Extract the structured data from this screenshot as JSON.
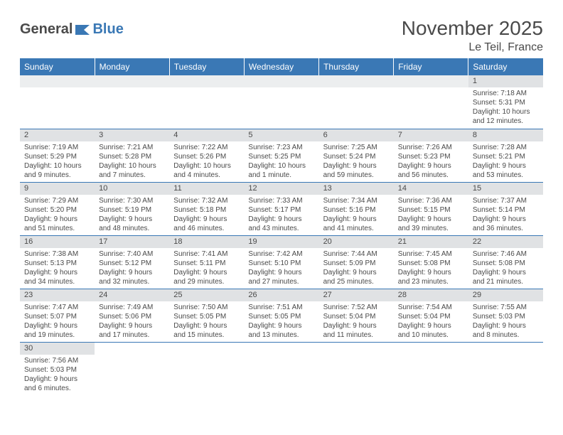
{
  "brand": {
    "part1": "General",
    "part2": "Blue"
  },
  "title": "November 2025",
  "subtitle": "Le Teil, France",
  "colors": {
    "header_bg": "#3a78b5",
    "header_text": "#ffffff",
    "band_bg": "#e0e2e4",
    "band_bg_light": "#eceeef",
    "cell_border": "#3a78b5",
    "text": "#4a4a4a",
    "brand_gray": "#4a4a4a",
    "brand_blue": "#3a78b5"
  },
  "day_headers": [
    "Sunday",
    "Monday",
    "Tuesday",
    "Wednesday",
    "Thursday",
    "Friday",
    "Saturday"
  ],
  "weeks": [
    [
      {
        "blank": true
      },
      {
        "blank": true
      },
      {
        "blank": true
      },
      {
        "blank": true
      },
      {
        "blank": true
      },
      {
        "blank": true
      },
      {
        "n": "1",
        "sunrise": "Sunrise: 7:18 AM",
        "sunset": "Sunset: 5:31 PM",
        "day1": "Daylight: 10 hours",
        "day2": "and 12 minutes."
      }
    ],
    [
      {
        "n": "2",
        "sunrise": "Sunrise: 7:19 AM",
        "sunset": "Sunset: 5:29 PM",
        "day1": "Daylight: 10 hours",
        "day2": "and 9 minutes."
      },
      {
        "n": "3",
        "sunrise": "Sunrise: 7:21 AM",
        "sunset": "Sunset: 5:28 PM",
        "day1": "Daylight: 10 hours",
        "day2": "and 7 minutes."
      },
      {
        "n": "4",
        "sunrise": "Sunrise: 7:22 AM",
        "sunset": "Sunset: 5:26 PM",
        "day1": "Daylight: 10 hours",
        "day2": "and 4 minutes."
      },
      {
        "n": "5",
        "sunrise": "Sunrise: 7:23 AM",
        "sunset": "Sunset: 5:25 PM",
        "day1": "Daylight: 10 hours",
        "day2": "and 1 minute."
      },
      {
        "n": "6",
        "sunrise": "Sunrise: 7:25 AM",
        "sunset": "Sunset: 5:24 PM",
        "day1": "Daylight: 9 hours",
        "day2": "and 59 minutes."
      },
      {
        "n": "7",
        "sunrise": "Sunrise: 7:26 AM",
        "sunset": "Sunset: 5:23 PM",
        "day1": "Daylight: 9 hours",
        "day2": "and 56 minutes."
      },
      {
        "n": "8",
        "sunrise": "Sunrise: 7:28 AM",
        "sunset": "Sunset: 5:21 PM",
        "day1": "Daylight: 9 hours",
        "day2": "and 53 minutes."
      }
    ],
    [
      {
        "n": "9",
        "sunrise": "Sunrise: 7:29 AM",
        "sunset": "Sunset: 5:20 PM",
        "day1": "Daylight: 9 hours",
        "day2": "and 51 minutes."
      },
      {
        "n": "10",
        "sunrise": "Sunrise: 7:30 AM",
        "sunset": "Sunset: 5:19 PM",
        "day1": "Daylight: 9 hours",
        "day2": "and 48 minutes."
      },
      {
        "n": "11",
        "sunrise": "Sunrise: 7:32 AM",
        "sunset": "Sunset: 5:18 PM",
        "day1": "Daylight: 9 hours",
        "day2": "and 46 minutes."
      },
      {
        "n": "12",
        "sunrise": "Sunrise: 7:33 AM",
        "sunset": "Sunset: 5:17 PM",
        "day1": "Daylight: 9 hours",
        "day2": "and 43 minutes."
      },
      {
        "n": "13",
        "sunrise": "Sunrise: 7:34 AM",
        "sunset": "Sunset: 5:16 PM",
        "day1": "Daylight: 9 hours",
        "day2": "and 41 minutes."
      },
      {
        "n": "14",
        "sunrise": "Sunrise: 7:36 AM",
        "sunset": "Sunset: 5:15 PM",
        "day1": "Daylight: 9 hours",
        "day2": "and 39 minutes."
      },
      {
        "n": "15",
        "sunrise": "Sunrise: 7:37 AM",
        "sunset": "Sunset: 5:14 PM",
        "day1": "Daylight: 9 hours",
        "day2": "and 36 minutes."
      }
    ],
    [
      {
        "n": "16",
        "sunrise": "Sunrise: 7:38 AM",
        "sunset": "Sunset: 5:13 PM",
        "day1": "Daylight: 9 hours",
        "day2": "and 34 minutes."
      },
      {
        "n": "17",
        "sunrise": "Sunrise: 7:40 AM",
        "sunset": "Sunset: 5:12 PM",
        "day1": "Daylight: 9 hours",
        "day2": "and 32 minutes."
      },
      {
        "n": "18",
        "sunrise": "Sunrise: 7:41 AM",
        "sunset": "Sunset: 5:11 PM",
        "day1": "Daylight: 9 hours",
        "day2": "and 29 minutes."
      },
      {
        "n": "19",
        "sunrise": "Sunrise: 7:42 AM",
        "sunset": "Sunset: 5:10 PM",
        "day1": "Daylight: 9 hours",
        "day2": "and 27 minutes."
      },
      {
        "n": "20",
        "sunrise": "Sunrise: 7:44 AM",
        "sunset": "Sunset: 5:09 PM",
        "day1": "Daylight: 9 hours",
        "day2": "and 25 minutes."
      },
      {
        "n": "21",
        "sunrise": "Sunrise: 7:45 AM",
        "sunset": "Sunset: 5:08 PM",
        "day1": "Daylight: 9 hours",
        "day2": "and 23 minutes."
      },
      {
        "n": "22",
        "sunrise": "Sunrise: 7:46 AM",
        "sunset": "Sunset: 5:08 PM",
        "day1": "Daylight: 9 hours",
        "day2": "and 21 minutes."
      }
    ],
    [
      {
        "n": "23",
        "sunrise": "Sunrise: 7:47 AM",
        "sunset": "Sunset: 5:07 PM",
        "day1": "Daylight: 9 hours",
        "day2": "and 19 minutes."
      },
      {
        "n": "24",
        "sunrise": "Sunrise: 7:49 AM",
        "sunset": "Sunset: 5:06 PM",
        "day1": "Daylight: 9 hours",
        "day2": "and 17 minutes."
      },
      {
        "n": "25",
        "sunrise": "Sunrise: 7:50 AM",
        "sunset": "Sunset: 5:05 PM",
        "day1": "Daylight: 9 hours",
        "day2": "and 15 minutes."
      },
      {
        "n": "26",
        "sunrise": "Sunrise: 7:51 AM",
        "sunset": "Sunset: 5:05 PM",
        "day1": "Daylight: 9 hours",
        "day2": "and 13 minutes."
      },
      {
        "n": "27",
        "sunrise": "Sunrise: 7:52 AM",
        "sunset": "Sunset: 5:04 PM",
        "day1": "Daylight: 9 hours",
        "day2": "and 11 minutes."
      },
      {
        "n": "28",
        "sunrise": "Sunrise: 7:54 AM",
        "sunset": "Sunset: 5:04 PM",
        "day1": "Daylight: 9 hours",
        "day2": "and 10 minutes."
      },
      {
        "n": "29",
        "sunrise": "Sunrise: 7:55 AM",
        "sunset": "Sunset: 5:03 PM",
        "day1": "Daylight: 9 hours",
        "day2": "and 8 minutes."
      }
    ],
    [
      {
        "n": "30",
        "sunrise": "Sunrise: 7:56 AM",
        "sunset": "Sunset: 5:03 PM",
        "day1": "Daylight: 9 hours",
        "day2": "and 6 minutes."
      },
      {
        "blank": true
      },
      {
        "blank": true
      },
      {
        "blank": true
      },
      {
        "blank": true
      },
      {
        "blank": true
      },
      {
        "blank": true
      }
    ]
  ]
}
